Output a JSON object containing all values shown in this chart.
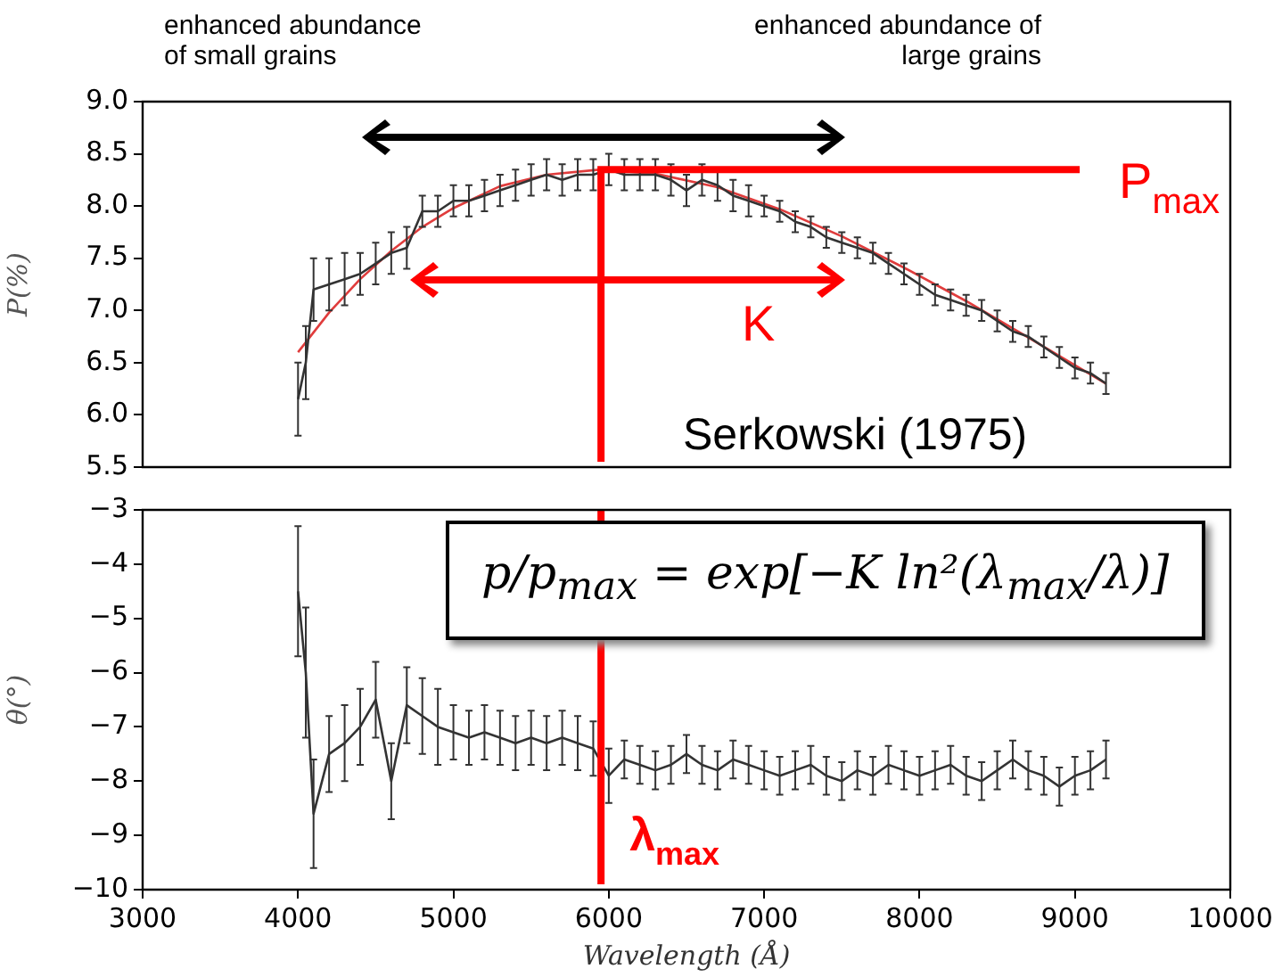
{
  "chart_data": [
    {
      "type": "line",
      "ylabel": "P(%)",
      "xlim": [
        3000,
        10000
      ],
      "ylim": [
        5.5,
        9.0
      ],
      "xticks": [
        3000,
        4000,
        5000,
        6000,
        7000,
        8000,
        9000,
        10000
      ],
      "yticks": [
        5.5,
        {
          "value": 6,
          "label": "6.0"
        },
        6.5,
        {
          "value": 7,
          "label": "7.0"
        },
        7.5,
        {
          "value": 8,
          "label": "8.0"
        },
        8.5,
        {
          "value": 9,
          "label": "9.0"
        }
      ],
      "tick_labels": "y",
      "grid": false,
      "marker": "none",
      "annotations": [
        "enhanced abundance of small grains",
        "enhanced abundance of large grains",
        "K",
        "Serkowski (1975)"
      ],
      "ref_lines": [
        {
          "axis": "y",
          "value": 8.35,
          "label": "P$_{max}$",
          "color": "#ff0000"
        },
        {
          "axis": "x",
          "value": 5950,
          "color": "#ff0000"
        }
      ],
      "series": [
        {
          "color": "#333333",
          "x": [
            4000,
            4050,
            4100,
            4200,
            4300,
            4400,
            4500,
            4600,
            4700,
            4800,
            4900,
            5000,
            5100,
            5200,
            5300,
            5400,
            5500,
            5600,
            5700,
            5800,
            5900,
            6000,
            6100,
            6200,
            6300,
            6400,
            6500,
            6600,
            6700,
            6800,
            6900,
            7000,
            7100,
            7200,
            7300,
            7400,
            7500,
            7600,
            7700,
            7800,
            7900,
            8000,
            8100,
            8200,
            8300,
            8400,
            8500,
            8600,
            8700,
            8800,
            8900,
            9000,
            9100,
            9200
          ],
          "values": [
            6.15,
            6.5,
            7.2,
            7.25,
            7.3,
            7.35,
            7.45,
            7.55,
            7.6,
            7.95,
            7.95,
            8.05,
            8.05,
            8.1,
            8.15,
            8.2,
            8.25,
            8.3,
            8.25,
            8.3,
            8.3,
            8.35,
            8.3,
            8.3,
            8.3,
            8.25,
            8.15,
            8.25,
            8.2,
            8.1,
            8.05,
            8.0,
            7.95,
            7.85,
            7.8,
            7.7,
            7.65,
            7.6,
            7.55,
            7.45,
            7.35,
            7.25,
            7.15,
            7.1,
            7.05,
            7.0,
            6.9,
            6.8,
            6.75,
            6.65,
            6.55,
            6.45,
            6.4,
            6.3
          ],
          "errors": [
            0.35,
            0.35,
            0.3,
            0.25,
            0.25,
            0.2,
            0.2,
            0.2,
            0.2,
            0.15,
            0.15,
            0.15,
            0.15,
            0.15,
            0.15,
            0.15,
            0.15,
            0.15,
            0.15,
            0.15,
            0.15,
            0.15,
            0.15,
            0.15,
            0.15,
            0.15,
            0.15,
            0.15,
            0.15,
            0.15,
            0.15,
            0.1,
            0.1,
            0.1,
            0.1,
            0.1,
            0.1,
            0.1,
            0.1,
            0.1,
            0.1,
            0.1,
            0.1,
            0.1,
            0.1,
            0.1,
            0.1,
            0.1,
            0.1,
            0.1,
            0.1,
            0.1,
            0.1,
            0.1
          ]
        },
        {
          "type": "line",
          "color": "#e03c3c",
          "x": [
            4000,
            4200,
            4400,
            4600,
            4800,
            5000,
            5300,
            5600,
            5950,
            6300,
            6700,
            7100,
            7500,
            7900,
            8300,
            8700,
            9200
          ],
          "values": [
            6.6,
            6.98,
            7.3,
            7.57,
            7.8,
            7.98,
            8.19,
            8.3,
            8.35,
            8.31,
            8.18,
            7.97,
            7.71,
            7.41,
            7.09,
            6.74,
            6.3
          ]
        }
      ]
    },
    {
      "type": "line",
      "xlabel": "Wavelength (Å)",
      "ylabel": "θ(°)",
      "xlim": [
        3000,
        10000
      ],
      "ylim": [
        -10,
        -3
      ],
      "xticks": [
        3000,
        4000,
        5000,
        6000,
        7000,
        8000,
        9000,
        10000
      ],
      "yticks": [
        {
          "value": -10,
          "label": "−10"
        },
        {
          "value": -9,
          "label": "−9"
        },
        {
          "value": -8,
          "label": "−8"
        },
        {
          "value": -7,
          "label": "−7"
        },
        {
          "value": -6,
          "label": "−6"
        },
        {
          "value": -5,
          "label": "−5"
        },
        {
          "value": -4,
          "label": "−4"
        },
        {
          "value": -3,
          "label": "−3"
        }
      ],
      "grid": false,
      "marker": "none",
      "annotations": [
        "p/p$_{max}$ = exp[−K ln²(λ$_{max}$/λ)]"
      ],
      "ref_lines": [
        {
          "axis": "x",
          "value": 5950,
          "label": "λ$_{max}$",
          "color": "#ff0000"
        }
      ],
      "series": [
        {
          "color": "#333333",
          "x": [
            4000,
            4050,
            4100,
            4200,
            4300,
            4400,
            4500,
            4600,
            4700,
            4800,
            4900,
            5000,
            5100,
            5200,
            5300,
            5400,
            5500,
            5600,
            5700,
            5800,
            5900,
            6000,
            6100,
            6200,
            6300,
            6400,
            6500,
            6600,
            6700,
            6800,
            6900,
            7000,
            7100,
            7200,
            7300,
            7400,
            7500,
            7600,
            7700,
            7800,
            7900,
            8000,
            8100,
            8200,
            8300,
            8400,
            8500,
            8600,
            8700,
            8800,
            8900,
            9000,
            9100,
            9200
          ],
          "values": [
            -4.5,
            -6.0,
            -8.6,
            -7.5,
            -7.3,
            -7.0,
            -6.5,
            -8.0,
            -6.6,
            -6.8,
            -7.0,
            -7.1,
            -7.2,
            -7.1,
            -7.2,
            -7.3,
            -7.2,
            -7.3,
            -7.2,
            -7.3,
            -7.4,
            -7.9,
            -7.6,
            -7.7,
            -7.8,
            -7.7,
            -7.5,
            -7.7,
            -7.8,
            -7.6,
            -7.7,
            -7.8,
            -7.9,
            -7.8,
            -7.7,
            -7.9,
            -8.0,
            -7.8,
            -7.9,
            -7.7,
            -7.8,
            -7.9,
            -7.8,
            -7.7,
            -7.9,
            -8.0,
            -7.8,
            -7.6,
            -7.8,
            -7.9,
            -8.1,
            -7.9,
            -7.8,
            -7.6
          ],
          "errors": [
            1.2,
            1.2,
            1.0,
            0.7,
            0.7,
            0.7,
            0.7,
            0.7,
            0.7,
            0.7,
            0.7,
            0.5,
            0.5,
            0.5,
            0.5,
            0.5,
            0.5,
            0.5,
            0.5,
            0.5,
            0.5,
            0.5,
            0.35,
            0.35,
            0.35,
            0.35,
            0.35,
            0.35,
            0.35,
            0.35,
            0.35,
            0.35,
            0.35,
            0.35,
            0.35,
            0.35,
            0.35,
            0.35,
            0.35,
            0.35,
            0.35,
            0.35,
            0.35,
            0.35,
            0.35,
            0.35,
            0.35,
            0.35,
            0.35,
            0.35,
            0.35,
            0.35,
            0.35,
            0.35
          ]
        }
      ]
    }
  ]
}
